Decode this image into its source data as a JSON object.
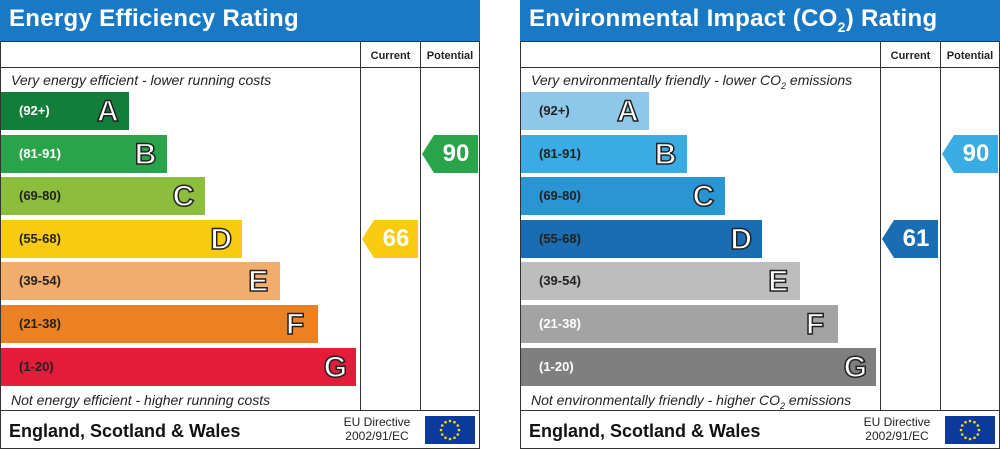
{
  "chart_data": [
    {
      "type": "bar",
      "title": "Energy Efficiency Rating",
      "columns": [
        "Current",
        "Potential"
      ],
      "top_caption": "Very energy efficient - lower running costs",
      "bottom_caption": "Not energy efficient - higher running costs",
      "bands": [
        {
          "range": "(92+)",
          "letter": "A",
          "color": "#137e3b",
          "text_color": "#ffffff"
        },
        {
          "range": "(81-91)",
          "letter": "B",
          "color": "#2aa44b",
          "text_color": "#ffffff"
        },
        {
          "range": "(69-80)",
          "letter": "C",
          "color": "#8dbd3c",
          "text_color": "#222222"
        },
        {
          "range": "(55-68)",
          "letter": "D",
          "color": "#f7cc10",
          "text_color": "#222222"
        },
        {
          "range": "(39-54)",
          "letter": "E",
          "color": "#f2ad6c",
          "text_color": "#222222"
        },
        {
          "range": "(21-38)",
          "letter": "F",
          "color": "#ec8124",
          "text_color": "#222222"
        },
        {
          "range": "(1-20)",
          "letter": "G",
          "color": "#e21c39",
          "text_color": "#222222"
        }
      ],
      "current": {
        "value": 66,
        "label": "66",
        "band": "D",
        "color": "#f7cc10"
      },
      "potential": {
        "value": 90,
        "label": "90",
        "band": "B",
        "color": "#2aa44b"
      },
      "footer": "England, Scotland & Wales",
      "directive": [
        "EU Directive",
        "2002/91/EC"
      ]
    },
    {
      "type": "bar",
      "title_parts": [
        "Environmental Impact (CO",
        "2",
        ") Rating"
      ],
      "columns": [
        "Current",
        "Potential"
      ],
      "top_caption_parts": [
        "Very environmentally friendly - lower CO",
        "2",
        " emissions"
      ],
      "bottom_caption_parts": [
        "Not environmentally friendly - higher CO",
        "2",
        " emissions"
      ],
      "bands": [
        {
          "range": "(92+)",
          "letter": "A",
          "color": "#8fc7ea",
          "text_color": "#222222"
        },
        {
          "range": "(81-91)",
          "letter": "B",
          "color": "#3aabe3",
          "text_color": "#222222"
        },
        {
          "range": "(69-80)",
          "letter": "C",
          "color": "#2a96d1",
          "text_color": "#222222"
        },
        {
          "range": "(55-68)",
          "letter": "D",
          "color": "#1a6db3",
          "text_color": "#222222"
        },
        {
          "range": "(39-54)",
          "letter": "E",
          "color": "#bdbdbd",
          "text_color": "#222222"
        },
        {
          "range": "(21-38)",
          "letter": "F",
          "color": "#a3a3a3",
          "text_color": "#ffffff"
        },
        {
          "range": "(1-20)",
          "letter": "G",
          "color": "#7f7f7f",
          "text_color": "#ffffff"
        }
      ],
      "current": {
        "value": 61,
        "label": "61",
        "band": "D",
        "color": "#1a6db3"
      },
      "potential": {
        "value": 90,
        "label": "90",
        "band": "B",
        "color": "#3aabe3"
      },
      "footer": "England, Scotland & Wales",
      "directive": [
        "EU Directive",
        "2002/91/EC"
      ]
    }
  ],
  "icons": {
    "eu_flag": "eu-flag-icon"
  }
}
